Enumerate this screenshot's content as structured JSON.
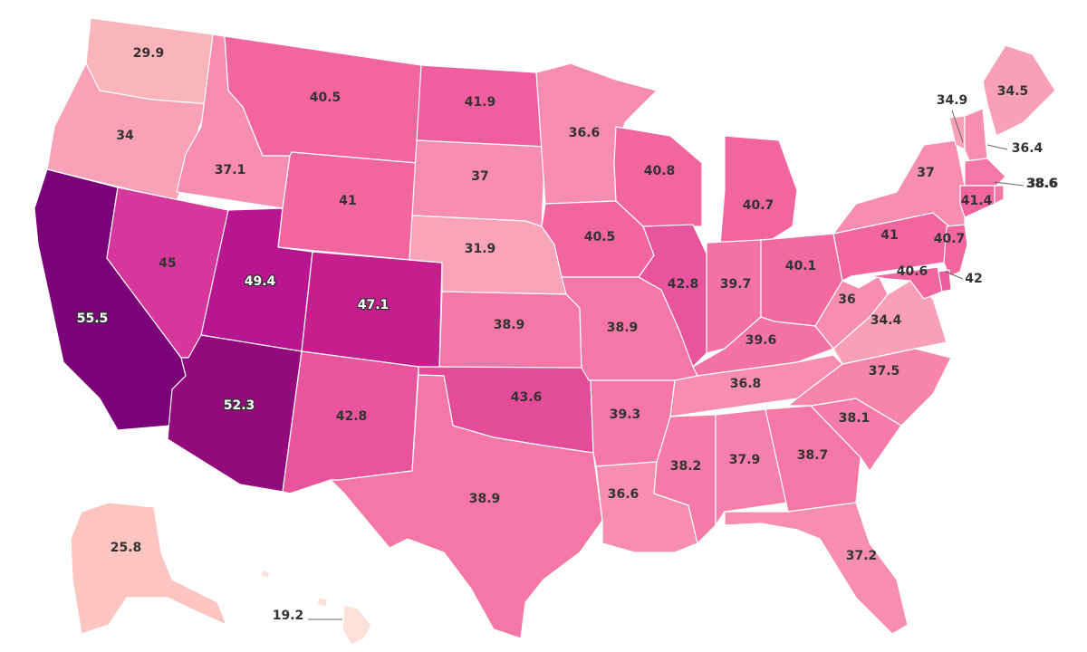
{
  "map": {
    "colors": {
      "lowest": "#fde0d8",
      "low": "#fbb4b9",
      "mid_low": "#f8a0b8",
      "mid": "#f78db0",
      "mid_high": "#f573a4",
      "high": "#f2629d",
      "higher": "#e24c98",
      "very_high": "#d3369a",
      "top": "#c41f8c",
      "max": "#7a0177",
      "border": "#ffffff"
    },
    "states": [
      {
        "id": "WA",
        "value": "29.9",
        "fill": "#fbb4b9"
      },
      {
        "id": "OR",
        "value": "34",
        "fill": "#f9a1b6"
      },
      {
        "id": "CA",
        "value": "55.5",
        "fill": "#7a0177"
      },
      {
        "id": "NV",
        "value": "45",
        "fill": "#d6379a"
      },
      {
        "id": "ID",
        "value": "37.1",
        "fill": "#f78db0"
      },
      {
        "id": "MT",
        "value": "40.5",
        "fill": "#f2669f"
      },
      {
        "id": "WY",
        "value": "41",
        "fill": "#f2669f"
      },
      {
        "id": "UT",
        "value": "49.4",
        "fill": "#b81690"
      },
      {
        "id": "AZ",
        "value": "52.3",
        "fill": "#930a7c"
      },
      {
        "id": "CO",
        "value": "47.1",
        "fill": "#c71e8e"
      },
      {
        "id": "NM",
        "value": "42.8",
        "fill": "#e8559c"
      },
      {
        "id": "ND",
        "value": "41.9",
        "fill": "#f15e9f"
      },
      {
        "id": "SD",
        "value": "37",
        "fill": "#f78db0"
      },
      {
        "id": "NE",
        "value": "31.9",
        "fill": "#f9a4b8"
      },
      {
        "id": "KS",
        "value": "38.9",
        "fill": "#f577a6"
      },
      {
        "id": "OK",
        "value": "43.6",
        "fill": "#e24c98"
      },
      {
        "id": "TX",
        "value": "38.9",
        "fill": "#f577a6"
      },
      {
        "id": "MN",
        "value": "36.6",
        "fill": "#f78db0"
      },
      {
        "id": "IA",
        "value": "40.5",
        "fill": "#f2669f"
      },
      {
        "id": "MO",
        "value": "38.9",
        "fill": "#f577a6"
      },
      {
        "id": "AR",
        "value": "39.3",
        "fill": "#f577a6"
      },
      {
        "id": "LA",
        "value": "36.6",
        "fill": "#f78db0"
      },
      {
        "id": "WI",
        "value": "40.8",
        "fill": "#f2669f"
      },
      {
        "id": "IL",
        "value": "42.8",
        "fill": "#e8559c"
      },
      {
        "id": "MI",
        "value": "40.7",
        "fill": "#f2669f"
      },
      {
        "id": "IN",
        "value": "39.7",
        "fill": "#f473a5"
      },
      {
        "id": "OH",
        "value": "40.1",
        "fill": "#f2699f"
      },
      {
        "id": "KY",
        "value": "39.6",
        "fill": "#f473a5"
      },
      {
        "id": "TN",
        "value": "36.8",
        "fill": "#f78db0"
      },
      {
        "id": "MS",
        "value": "38.2",
        "fill": "#f67ba9"
      },
      {
        "id": "AL",
        "value": "37.9",
        "fill": "#f67fab"
      },
      {
        "id": "GA",
        "value": "38.7",
        "fill": "#f577a6"
      },
      {
        "id": "FL",
        "value": "37.2",
        "fill": "#f78db0"
      },
      {
        "id": "SC",
        "value": "38.1",
        "fill": "#f67ba9"
      },
      {
        "id": "NC",
        "value": "37.5",
        "fill": "#f685ad"
      },
      {
        "id": "VA",
        "value": "34.4",
        "fill": "#f8a0b8"
      },
      {
        "id": "WV",
        "value": "36",
        "fill": "#f78db0"
      },
      {
        "id": "PA",
        "value": "41",
        "fill": "#f2669f"
      },
      {
        "id": "NY",
        "value": "37",
        "fill": "#f78db0"
      },
      {
        "id": "ME",
        "value": "34.5",
        "fill": "#f8a0b8"
      },
      {
        "id": "VT",
        "value": "34.9",
        "fill": "#f8a0b8"
      },
      {
        "id": "NH",
        "value": "36.4",
        "fill": "#f78db0"
      },
      {
        "id": "MA",
        "value": "38.6",
        "fill": "#f577a6"
      },
      {
        "id": "CT",
        "value": "41.4",
        "fill": "#f2669f"
      },
      {
        "id": "RI",
        "value": "38.6",
        "fill": "#f577a6"
      },
      {
        "id": "NJ",
        "value": "40.7",
        "fill": "#f2669f"
      },
      {
        "id": "DE",
        "value": "42",
        "fill": "#ec5c9d"
      },
      {
        "id": "MD",
        "value": "40.6",
        "fill": "#f2669f"
      },
      {
        "id": "AK",
        "value": "25.8",
        "fill": "#fcc5c0"
      },
      {
        "id": "HI",
        "value": "19.2",
        "fill": "#fde0d8"
      }
    ]
  }
}
